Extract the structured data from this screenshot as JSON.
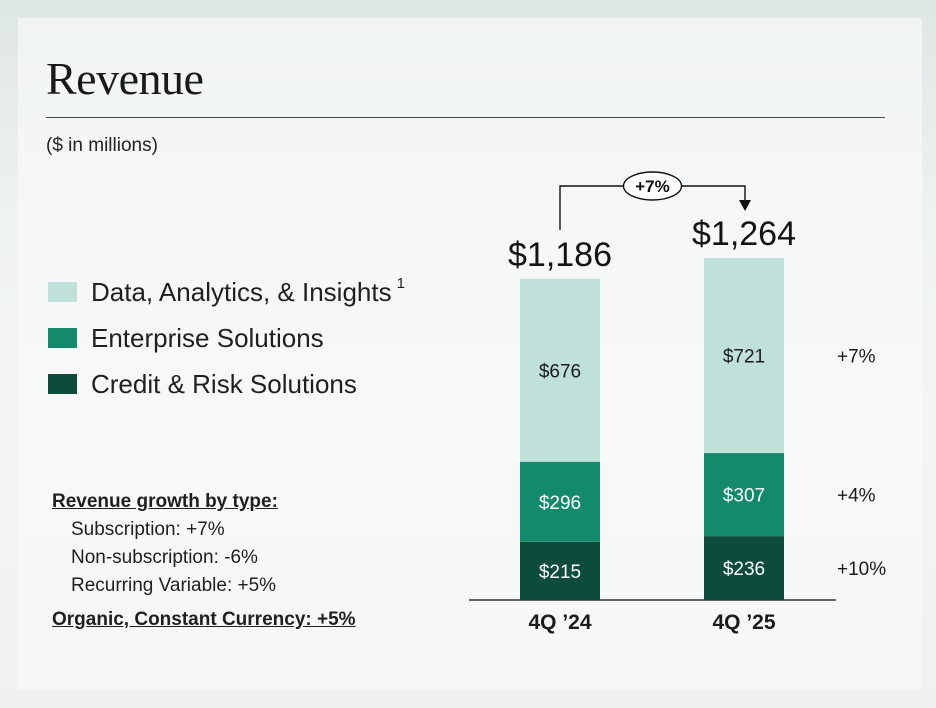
{
  "slide": {
    "title": "Revenue",
    "subtitle": "($ in millions)"
  },
  "legend": [
    {
      "label": "Data, Analytics, & Insights",
      "superscript": "1",
      "color": "#bfe1d9"
    },
    {
      "label": "Enterprise Solutions",
      "superscript": "",
      "color": "#128a6b"
    },
    {
      "label": "Credit & Risk Solutions",
      "superscript": "",
      "color": "#0c4c3b"
    }
  ],
  "growth_by_type": {
    "heading": "Revenue growth by type:",
    "items": [
      "Subscription: +7%",
      "Non-subscription: -6%",
      "Recurring Variable: +5%"
    ],
    "organic": "Organic, Constant Currency: +5%"
  },
  "chart_data": {
    "type": "bar",
    "stacked": true,
    "categories": [
      "4Q ’24",
      "4Q ’25"
    ],
    "series": [
      {
        "name": "Credit & Risk Solutions",
        "values": [
          215,
          236
        ],
        "labels": [
          "$215",
          "$236"
        ],
        "color": "#0c4c3b",
        "label_color": "#ffffff",
        "growth": "+10%"
      },
      {
        "name": "Enterprise Solutions",
        "values": [
          296,
          307
        ],
        "labels": [
          "$296",
          "$307"
        ],
        "color": "#128a6b",
        "label_color": "#ffffff",
        "growth": "+4%"
      },
      {
        "name": "Data, Analytics, & Insights",
        "values": [
          676,
          721
        ],
        "labels": [
          "$676",
          "$721"
        ],
        "color": "#bfe1d9",
        "label_color": "#1b1b1b",
        "growth": "+7%"
      }
    ],
    "totals": [
      1186,
      1264
    ],
    "total_labels": [
      "$1,186",
      "$1,264"
    ],
    "total_change": "+7%",
    "ylim": [
      0,
      1264
    ],
    "grid": false,
    "axes_visible": false
  }
}
